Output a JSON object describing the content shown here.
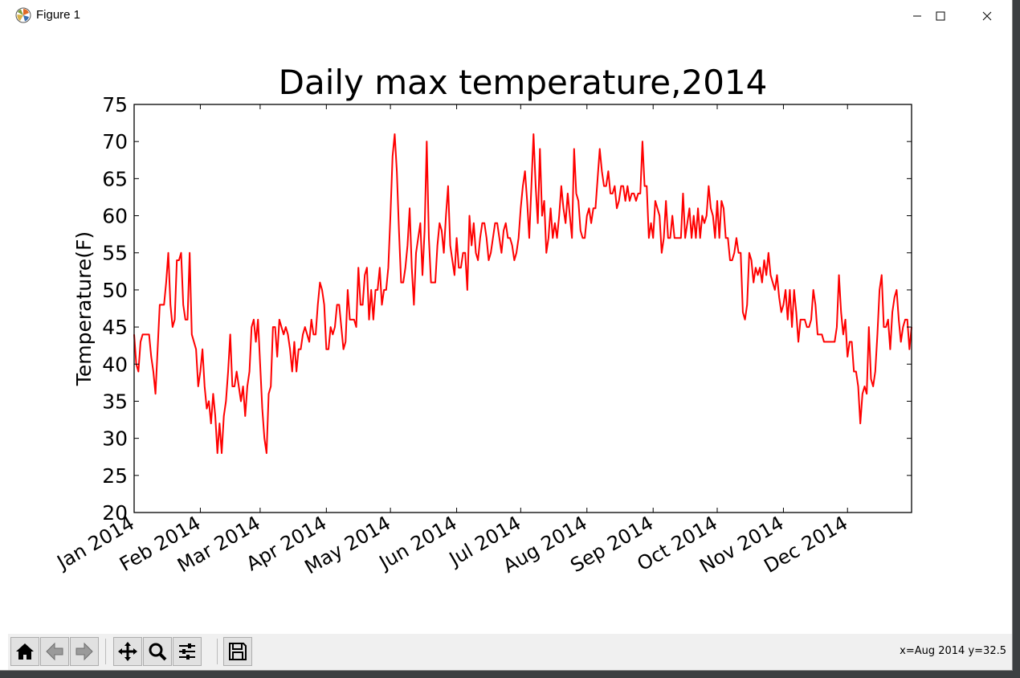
{
  "window": {
    "title": "Figure 1",
    "controls": [
      "minimize-icon",
      "maximize-icon",
      "close-icon"
    ]
  },
  "toolbar": {
    "tools": [
      "home-icon",
      "back-icon",
      "forward-icon",
      "pan-icon",
      "zoom-icon",
      "configure-subplots-icon",
      "save-icon"
    ],
    "coords_text": "x=Aug 2014 y=32.5"
  },
  "colors": {
    "line": "#ff0000",
    "axes": "#000000",
    "background": "#ffffff"
  },
  "chart_data": {
    "type": "line",
    "title": "Daily max temperature,2014",
    "xlabel": "",
    "ylabel": "Temperature(F)",
    "ylim": [
      20,
      75
    ],
    "yticks": [
      20,
      25,
      30,
      35,
      40,
      45,
      50,
      55,
      60,
      65,
      70,
      75
    ],
    "xlim": [
      "2014-01-01",
      "2014-12-31"
    ],
    "xticks": [
      {
        "date": "2014-01-01",
        "label": "Jan 2014"
      },
      {
        "date": "2014-02-01",
        "label": "Feb 2014"
      },
      {
        "date": "2014-03-01",
        "label": "Mar 2014"
      },
      {
        "date": "2014-04-01",
        "label": "Apr 2014"
      },
      {
        "date": "2014-05-01",
        "label": "May 2014"
      },
      {
        "date": "2014-06-01",
        "label": "Jun 2014"
      },
      {
        "date": "2014-07-01",
        "label": "Jul 2014"
      },
      {
        "date": "2014-08-01",
        "label": "Aug 2014"
      },
      {
        "date": "2014-09-01",
        "label": "Sep 2014"
      },
      {
        "date": "2014-10-01",
        "label": "Oct 2014"
      },
      {
        "date": "2014-11-01",
        "label": "Nov 2014"
      },
      {
        "date": "2014-12-01",
        "label": "Dec 2014"
      }
    ],
    "grid": false,
    "series": [
      {
        "color": "#ff0000",
        "values": [
          44,
          40,
          39,
          43,
          44,
          44,
          44,
          44,
          41,
          39,
          36,
          42,
          48,
          48,
          48,
          51,
          55,
          48,
          45,
          46,
          54,
          54,
          55,
          48,
          46,
          46,
          55,
          44,
          43,
          42,
          37,
          39,
          42,
          37,
          34,
          35,
          32,
          36,
          33,
          28,
          32,
          28,
          33,
          35,
          39,
          44,
          37,
          37,
          39,
          37,
          35,
          37,
          33,
          37,
          39,
          45,
          46,
          43,
          46,
          40,
          34,
          30,
          28,
          36,
          37,
          45,
          45,
          41,
          46,
          45,
          44,
          45,
          44,
          42,
          39,
          43,
          39,
          42,
          42,
          44,
          45,
          44,
          43,
          46,
          44,
          44,
          48,
          51,
          50,
          48,
          42,
          42,
          45,
          44,
          45,
          48,
          48,
          45,
          42,
          43,
          50,
          46,
          46,
          46,
          45,
          53,
          48,
          48,
          52,
          53,
          46,
          50,
          46,
          50,
          50,
          53,
          48,
          50,
          50,
          53,
          60,
          68,
          71,
          66,
          58,
          51,
          51,
          53,
          56,
          61,
          53,
          48,
          55,
          57,
          59,
          52,
          58,
          70,
          57,
          51,
          51,
          51,
          56,
          59,
          58,
          55,
          60,
          64,
          56,
          54,
          52,
          57,
          53,
          53,
          55,
          55,
          50,
          60,
          56,
          59,
          55,
          54,
          57,
          59,
          59,
          57,
          54,
          55,
          57,
          59,
          59,
          57,
          55,
          58,
          59,
          57,
          57,
          56,
          54,
          55,
          57,
          61,
          64,
          66,
          62,
          57,
          64,
          71,
          64,
          59,
          69,
          60,
          62,
          55,
          57,
          61,
          57,
          59,
          57,
          60,
          64,
          61,
          59,
          63,
          60,
          57,
          69,
          63,
          62,
          58,
          57,
          57,
          60,
          61,
          59,
          61,
          61,
          65,
          69,
          66,
          64,
          64,
          66,
          63,
          63,
          64,
          61,
          62,
          64,
          64,
          62,
          64,
          62,
          63,
          63,
          62,
          63,
          63,
          70,
          64,
          64,
          57,
          59,
          57,
          62,
          61,
          60,
          55,
          57,
          62,
          57,
          57,
          60,
          57,
          57,
          57,
          57,
          63,
          57,
          59,
          61,
          57,
          60,
          57,
          61,
          57,
          60,
          59,
          60,
          64,
          61,
          60,
          57,
          62,
          57,
          62,
          61,
          57,
          57,
          54,
          54,
          55,
          57,
          55,
          55,
          47,
          46,
          48,
          55,
          54,
          51,
          53,
          52,
          53,
          51,
          54,
          52,
          55,
          52,
          51,
          50,
          52,
          49,
          47,
          48,
          50,
          46,
          50,
          45,
          50,
          47,
          43,
          46,
          46,
          46,
          45,
          45,
          46,
          50,
          48,
          44,
          44,
          44,
          43,
          43,
          43,
          43,
          43,
          43,
          45,
          52,
          47,
          44,
          46,
          41,
          43,
          43,
          39,
          39,
          37,
          32,
          36,
          37,
          36,
          45,
          38,
          37,
          39,
          44,
          50,
          52,
          45,
          45,
          46,
          42,
          47,
          49,
          50,
          46,
          43,
          45,
          46,
          46,
          42,
          45
        ]
      }
    ]
  }
}
